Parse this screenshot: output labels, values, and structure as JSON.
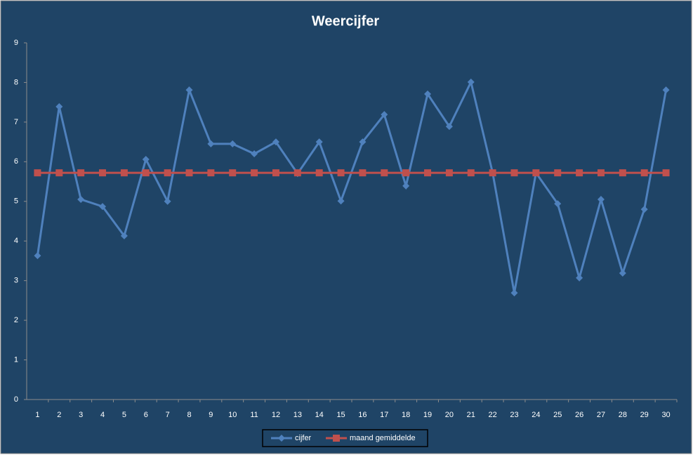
{
  "chart_data": {
    "type": "line",
    "title": "Weercijfer",
    "categories": [
      1,
      2,
      3,
      4,
      5,
      6,
      7,
      8,
      9,
      10,
      11,
      12,
      13,
      14,
      15,
      16,
      17,
      18,
      19,
      20,
      21,
      22,
      23,
      24,
      25,
      26,
      27,
      28,
      29,
      30
    ],
    "series": [
      {
        "name": "cijfer",
        "color": "#4f81bd",
        "marker": "diamond",
        "values": [
          3.63,
          7.39,
          5.05,
          4.87,
          4.13,
          6.06,
          5.0,
          7.81,
          6.45,
          6.45,
          6.2,
          6.5,
          5.7,
          6.5,
          5.01,
          6.5,
          7.19,
          5.39,
          7.71,
          6.89,
          8.01,
          5.72,
          2.69,
          5.72,
          4.94,
          3.07,
          5.05,
          3.19,
          4.8,
          7.81
        ]
      },
      {
        "name": "maand gemiddelde",
        "color": "#c0504d",
        "marker": "square",
        "values": [
          5.72,
          5.72,
          5.72,
          5.72,
          5.72,
          5.72,
          5.72,
          5.72,
          5.72,
          5.72,
          5.72,
          5.72,
          5.72,
          5.72,
          5.72,
          5.72,
          5.72,
          5.72,
          5.72,
          5.72,
          5.72,
          5.72,
          5.72,
          5.72,
          5.72,
          5.72,
          5.72,
          5.72,
          5.72,
          5.72
        ]
      }
    ],
    "ylim": [
      0,
      9
    ],
    "yticks": [
      0,
      1,
      2,
      3,
      4,
      5,
      6,
      7,
      8,
      9
    ],
    "grid": false,
    "legend": "bottom"
  }
}
